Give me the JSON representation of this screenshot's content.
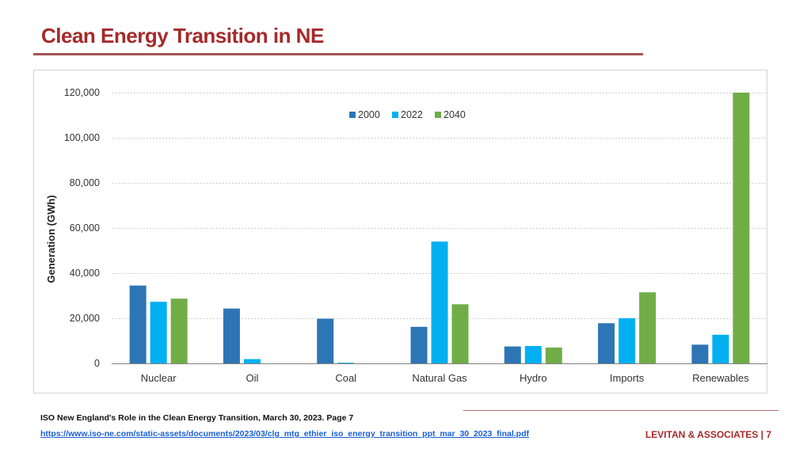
{
  "header": {
    "title": "Clean Energy Transition in NE"
  },
  "footer": {
    "source": "ISO New England's Role in the Clean Energy Transition, March 30, 2023. Page 7",
    "link": "https://www.iso-ne.com/static-assets/documents/2023/03/clg_mtg_ethier_iso_energy_transition_ppt_mar_30_2023_final.pdf",
    "brand": "LEVITAN & ASSOCIATES | 7"
  },
  "chart_data": {
    "type": "bar",
    "title": "",
    "xlabel": "",
    "ylabel": "Generation (GWh)",
    "ylim": [
      0,
      120000
    ],
    "yticks": [
      0,
      20000,
      40000,
      60000,
      80000,
      100000,
      120000
    ],
    "ytick_labels": [
      "0",
      "20,000",
      "40,000",
      "60,000",
      "80,000",
      "100,000",
      "120,000"
    ],
    "grid": true,
    "legend": "top-center",
    "categories": [
      "Nuclear",
      "Oil",
      "Coal",
      "Natural Gas",
      "Hydro",
      "Imports",
      "Renewables"
    ],
    "series": [
      {
        "name": "2000",
        "color": "#2e75b6",
        "values": [
          34500,
          24300,
          19800,
          16200,
          7500,
          17800,
          8300
        ]
      },
      {
        "name": "2022",
        "color": "#00b0f0",
        "values": [
          27300,
          1900,
          300,
          54000,
          7700,
          20000,
          12700
        ]
      },
      {
        "name": "2040",
        "color": "#70ad47",
        "values": [
          28700,
          0,
          0,
          26200,
          7000,
          31500,
          120000
        ]
      }
    ]
  }
}
